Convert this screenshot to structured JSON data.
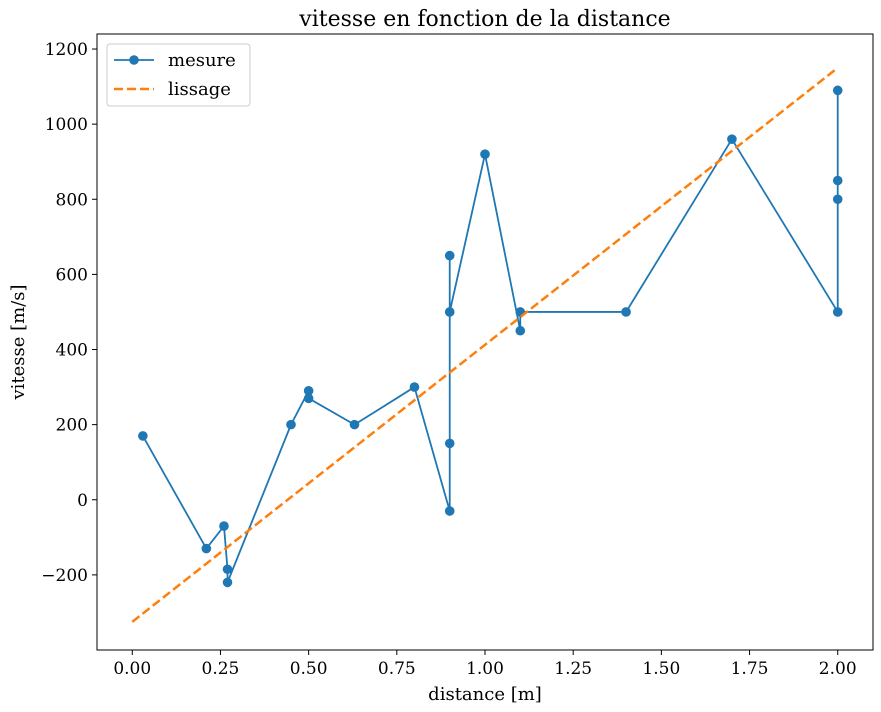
{
  "chart_data": {
    "type": "line",
    "title": "vitesse en fonction de la distance",
    "xlabel": "distance [m]",
    "ylabel": "vitesse [m/s]",
    "xlim": [
      -0.1,
      2.1
    ],
    "ylim": [
      -400,
      1240
    ],
    "xticks": [
      0.0,
      0.25,
      0.5,
      0.75,
      1.0,
      1.25,
      1.5,
      1.75,
      2.0
    ],
    "xtick_labels": [
      "0.00",
      "0.25",
      "0.50",
      "0.75",
      "1.00",
      "1.25",
      "1.50",
      "1.75",
      "2.00"
    ],
    "yticks": [
      -200,
      0,
      200,
      400,
      600,
      800,
      1000,
      1200
    ],
    "ytick_labels": [
      "−200",
      "0",
      "200",
      "400",
      "600",
      "800",
      "1000",
      "1200"
    ],
    "grid": false,
    "legend_position": "top-left",
    "series": [
      {
        "name": "mesure",
        "style": "solid-line-with-markers",
        "color": "#1f77b4",
        "x": [
          0.03,
          0.21,
          0.26,
          0.27,
          0.27,
          0.45,
          0.5,
          0.5,
          0.63,
          0.8,
          0.9,
          0.9,
          0.9,
          0.9,
          1.0,
          1.1,
          1.1,
          1.4,
          1.7,
          2.0,
          2.0,
          2.0,
          2.0
        ],
        "y": [
          170,
          -130,
          -70,
          -185,
          -220,
          200,
          290,
          270,
          200,
          300,
          -30,
          150,
          650,
          500,
          920,
          450,
          500,
          500,
          960,
          500,
          800,
          850,
          1090
        ]
      },
      {
        "name": "lissage",
        "style": "dashed-line",
        "color": "#ff7f0e",
        "x": [
          0.0,
          2.0
        ],
        "y": [
          -325,
          1150
        ]
      }
    ]
  }
}
